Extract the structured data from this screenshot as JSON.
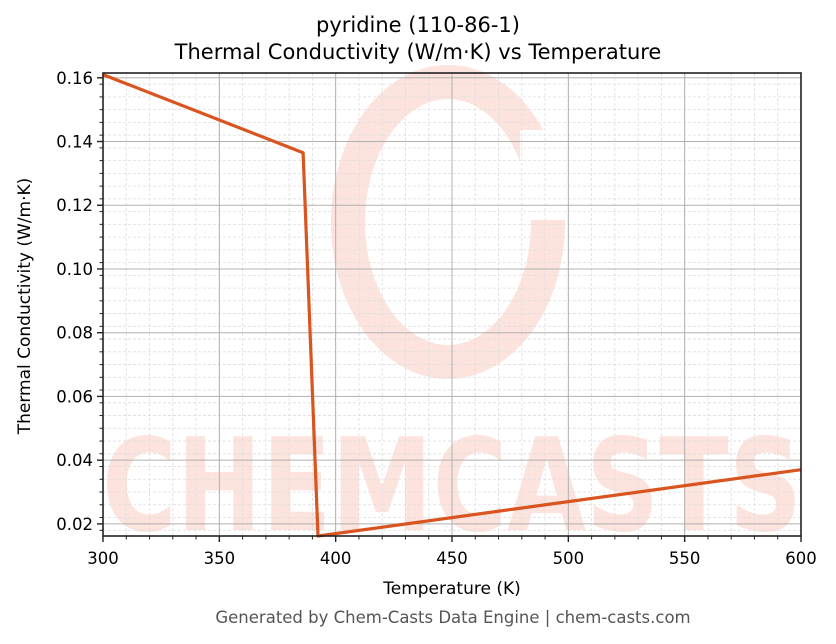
{
  "chart_data": {
    "type": "line",
    "title": "pyridine (110-86-1)",
    "subtitle": "Thermal Conductivity (W/m·K) vs Temperature",
    "xlabel": "Temperature (K)",
    "ylabel": "Thermal Conductivity (W/m·K)",
    "xlim": [
      300,
      600
    ],
    "ylim": [
      0.0162,
      0.1615
    ],
    "xticks": [
      300,
      350,
      400,
      450,
      500,
      550,
      600
    ],
    "xtick_labels": [
      "300",
      "350",
      "400",
      "450",
      "500",
      "550",
      "600"
    ],
    "yticks": [
      0.02,
      0.04,
      0.06,
      0.08,
      0.1,
      0.12,
      0.14,
      0.16
    ],
    "ytick_labels": [
      "0.02",
      "0.04",
      "0.06",
      "0.08",
      "0.10",
      "0.12",
      "0.14",
      "0.16"
    ],
    "grid": true,
    "minor_grid": true,
    "legend": null,
    "series": [
      {
        "name": "Thermal Conductivity",
        "color": "#d9541e",
        "x": [
          300,
          386,
          392.4,
          600
        ],
        "y": [
          0.161,
          0.1365,
          0.0162,
          0.037
        ]
      }
    ]
  },
  "footer": "Generated by Chem-Casts Data Engine | chem-casts.com",
  "watermark": "CHEMCASTS",
  "colors": {
    "line": "#d9541e",
    "watermark": "#fde3dd",
    "axis": "#222222",
    "grid_major": "#b0b0b0",
    "grid_minor": "#dddddd"
  }
}
